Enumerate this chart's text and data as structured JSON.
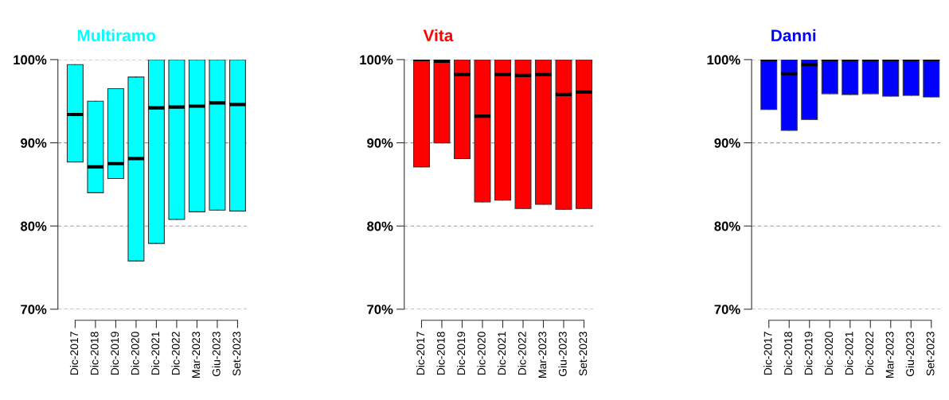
{
  "chart_data": [
    {
      "type": "box",
      "title": "Multiramo",
      "color": "#00ffff",
      "categories": [
        "Dic-2017",
        "Dic-2018",
        "Dic-2019",
        "Dic-2020",
        "Dic-2021",
        "Dic-2022",
        "Mar-2023",
        "Giu-2023",
        "Set-2023"
      ],
      "boxes": [
        {
          "low": 87.7,
          "q1": 87.7,
          "median": 93.4,
          "q3": 99.4,
          "high": 99.4
        },
        {
          "low": 84.0,
          "q1": 84.0,
          "median": 87.1,
          "q3": 95.0,
          "high": 95.0
        },
        {
          "low": 85.7,
          "q1": 85.7,
          "median": 87.5,
          "q3": 96.5,
          "high": 96.5
        },
        {
          "low": 75.8,
          "q1": 75.8,
          "median": 88.1,
          "q3": 97.9,
          "high": 97.9
        },
        {
          "low": 77.9,
          "q1": 77.9,
          "median": 94.2,
          "q3": 100,
          "high": 100
        },
        {
          "low": 80.8,
          "q1": 80.8,
          "median": 94.3,
          "q3": 100,
          "high": 100
        },
        {
          "low": 81.7,
          "q1": 81.7,
          "median": 94.4,
          "q3": 100,
          "high": 100
        },
        {
          "low": 81.9,
          "q1": 81.9,
          "median": 94.8,
          "q3": 100,
          "high": 100
        },
        {
          "low": 81.8,
          "q1": 81.8,
          "median": 94.6,
          "q3": 100,
          "high": 100
        }
      ],
      "ylim": [
        70,
        100
      ],
      "yticks": [
        {
          "value": 70,
          "label": "70%"
        },
        {
          "value": 80,
          "label": "80%"
        },
        {
          "value": 90,
          "label": "90%"
        },
        {
          "value": 100,
          "label": "100%"
        }
      ],
      "grid": "y"
    },
    {
      "type": "box",
      "title": "Vita",
      "color": "#ff0000",
      "categories": [
        "Dic-2017",
        "Dic-2018",
        "Dic-2019",
        "Dic-2020",
        "Dic-2021",
        "Dic-2022",
        "Mar-2023",
        "Giu-2023",
        "Set-2023"
      ],
      "boxes": [
        {
          "low": 87.1,
          "q1": 87.1,
          "median": 100,
          "q3": 100,
          "high": 100
        },
        {
          "low": 90.0,
          "q1": 90.0,
          "median": 99.8,
          "q3": 100,
          "high": 100
        },
        {
          "low": 88.1,
          "q1": 88.1,
          "median": 98.2,
          "q3": 100,
          "high": 100
        },
        {
          "low": 82.9,
          "q1": 82.9,
          "median": 93.2,
          "q3": 100,
          "high": 100
        },
        {
          "low": 83.1,
          "q1": 83.1,
          "median": 98.2,
          "q3": 100,
          "high": 100
        },
        {
          "low": 82.1,
          "q1": 82.1,
          "median": 98.1,
          "q3": 100,
          "high": 100
        },
        {
          "low": 82.6,
          "q1": 82.6,
          "median": 98.2,
          "q3": 100,
          "high": 100
        },
        {
          "low": 82.0,
          "q1": 82.0,
          "median": 95.8,
          "q3": 100,
          "high": 100
        },
        {
          "low": 82.1,
          "q1": 82.1,
          "median": 96.1,
          "q3": 100,
          "high": 100
        }
      ],
      "ylim": [
        70,
        100
      ],
      "yticks": [
        {
          "value": 70,
          "label": "70%"
        },
        {
          "value": 80,
          "label": "80%"
        },
        {
          "value": 90,
          "label": "90%"
        },
        {
          "value": 100,
          "label": "100%"
        }
      ],
      "grid": "y"
    },
    {
      "type": "box",
      "title": "Danni",
      "color": "#0000ff",
      "categories": [
        "Dic-2017",
        "Dic-2018",
        "Dic-2019",
        "Dic-2020",
        "Dic-2021",
        "Dic-2022",
        "Mar-2023",
        "Giu-2023",
        "Set-2023"
      ],
      "boxes": [
        {
          "low": 94.0,
          "q1": 94.0,
          "median": 100,
          "q3": 100,
          "high": 100
        },
        {
          "low": 91.5,
          "q1": 91.5,
          "median": 98.3,
          "q3": 100,
          "high": 100
        },
        {
          "low": 92.8,
          "q1": 92.8,
          "median": 99.4,
          "q3": 100,
          "high": 100
        },
        {
          "low": 95.9,
          "q1": 95.9,
          "median": 100,
          "q3": 100,
          "high": 100
        },
        {
          "low": 95.8,
          "q1": 95.8,
          "median": 100,
          "q3": 100,
          "high": 100
        },
        {
          "low": 95.9,
          "q1": 95.9,
          "median": 100,
          "q3": 100,
          "high": 100
        },
        {
          "low": 95.6,
          "q1": 95.6,
          "median": 100,
          "q3": 100,
          "high": 100
        },
        {
          "low": 95.7,
          "q1": 95.7,
          "median": 100,
          "q3": 100,
          "high": 100
        },
        {
          "low": 95.5,
          "q1": 95.5,
          "median": 100,
          "q3": 100,
          "high": 100
        }
      ],
      "ylim": [
        70,
        100
      ],
      "yticks": [
        {
          "value": 70,
          "label": "70%"
        },
        {
          "value": 80,
          "label": "80%"
        },
        {
          "value": 90,
          "label": "90%"
        },
        {
          "value": 100,
          "label": "100%"
        }
      ],
      "grid": "y"
    }
  ]
}
